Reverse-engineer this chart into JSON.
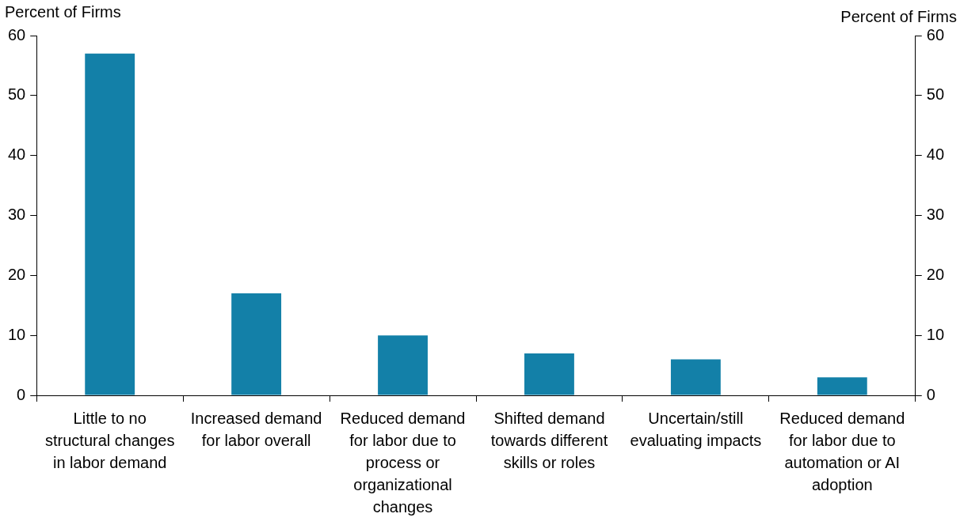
{
  "chart_data": {
    "type": "bar",
    "categories": [
      "Little to no structural changes in labor demand",
      "Increased demand for labor overall",
      "Reduced demand for labor due to process or organizational changes",
      "Shifted demand towards different skills or roles",
      "Uncertain/still evaluating impacts",
      "Reduced demand for labor due to automation or AI adoption"
    ],
    "values": [
      57,
      17,
      10,
      7,
      6,
      3
    ],
    "color": "#1380a8",
    "ylabel": "Percent of Firms",
    "y2label": "Percent of Firms",
    "ylim": [
      0,
      60
    ],
    "yticks": [
      0,
      10,
      20,
      30,
      40,
      50,
      60
    ],
    "y2lim": [
      0,
      60
    ],
    "y2ticks": [
      0,
      10,
      20,
      30,
      40,
      50,
      60
    ],
    "grid": false,
    "legend": false
  }
}
